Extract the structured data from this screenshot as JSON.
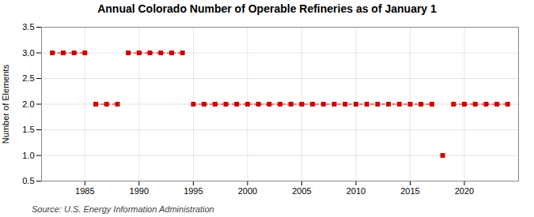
{
  "chart_data": {
    "type": "line",
    "title": "Annual Colorado Number of Operable Refineries as of January 1",
    "ylabel": "Number of Elements",
    "source": "Source: U.S. Energy Information Administration",
    "color": "#cc0000",
    "marker": "square",
    "line_style": "dashed",
    "grid": true,
    "xlim": [
      1981,
      2025
    ],
    "xticks": [
      1985,
      1990,
      1995,
      2000,
      2005,
      2010,
      2015,
      2020
    ],
    "ylim": [
      0.5,
      3.5
    ],
    "yticks": [
      0.5,
      {
        "value": 1,
        "label": "1.0"
      },
      1.5,
      {
        "value": 2,
        "label": "2.0"
      },
      2.5,
      {
        "value": 3,
        "label": "3.0"
      },
      3.5
    ],
    "x": [
      1982,
      1983,
      1984,
      1985,
      1986,
      1987,
      1988,
      1989,
      1990,
      1991,
      1992,
      1993,
      1994,
      1995,
      1996,
      1997,
      1998,
      1999,
      2000,
      2001,
      2002,
      2003,
      2004,
      2005,
      2006,
      2007,
      2008,
      2009,
      2010,
      2011,
      2012,
      2013,
      2014,
      2015,
      2016,
      2017,
      2018,
      2019,
      2020,
      2021,
      2022,
      2023,
      2024
    ],
    "values": [
      3,
      3,
      3,
      3,
      2,
      2,
      2,
      3,
      3,
      3,
      3,
      3,
      3,
      2,
      2,
      2,
      2,
      2,
      2,
      2,
      2,
      2,
      2,
      2,
      2,
      2,
      2,
      2,
      2,
      2,
      2,
      2,
      2,
      2,
      2,
      2,
      1,
      2,
      2,
      2,
      2,
      2,
      2
    ]
  }
}
